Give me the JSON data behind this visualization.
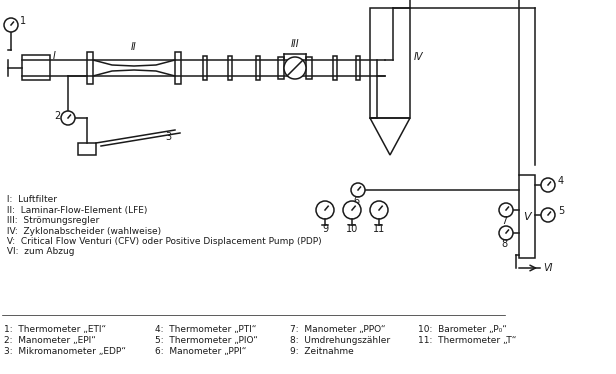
{
  "bg_color": "#ffffff",
  "line_color": "#1a1a1a",
  "legend_roman": [
    [
      "I",
      "Luftfilter"
    ],
    [
      "II",
      "Laminar-Flow-Element (LFE)"
    ],
    [
      "III",
      "Strömungsregler"
    ],
    [
      "IV",
      "Zyklonabscheider (wahlweise)"
    ],
    [
      "V",
      "Critical Flow Venturi (CFV) oder Positive Displacement Pump (PDP)"
    ],
    [
      "VI",
      "zum Abzug"
    ]
  ],
  "legend_numeric_col1": [
    [
      "1",
      "Thermometer „ETI“"
    ],
    [
      "2",
      "Manometer „EPI“"
    ],
    [
      "3",
      "Mikromanometer „EDP“"
    ]
  ],
  "legend_numeric_col2": [
    [
      "4",
      "Thermometer „PTI“"
    ],
    [
      "5",
      "Thermometer „PIO“"
    ],
    [
      "6",
      "Manometer „PPI“"
    ]
  ],
  "legend_numeric_col3": [
    [
      "7",
      "Manometer „PPO“"
    ],
    [
      "8",
      "Umdrehungszähler"
    ],
    [
      "9",
      "Zeitnahme"
    ]
  ],
  "legend_numeric_col4": [
    [
      "10",
      "Barometer „P₀“"
    ],
    [
      "11",
      "Thermometer „T“"
    ],
    [
      "",
      ""
    ]
  ]
}
